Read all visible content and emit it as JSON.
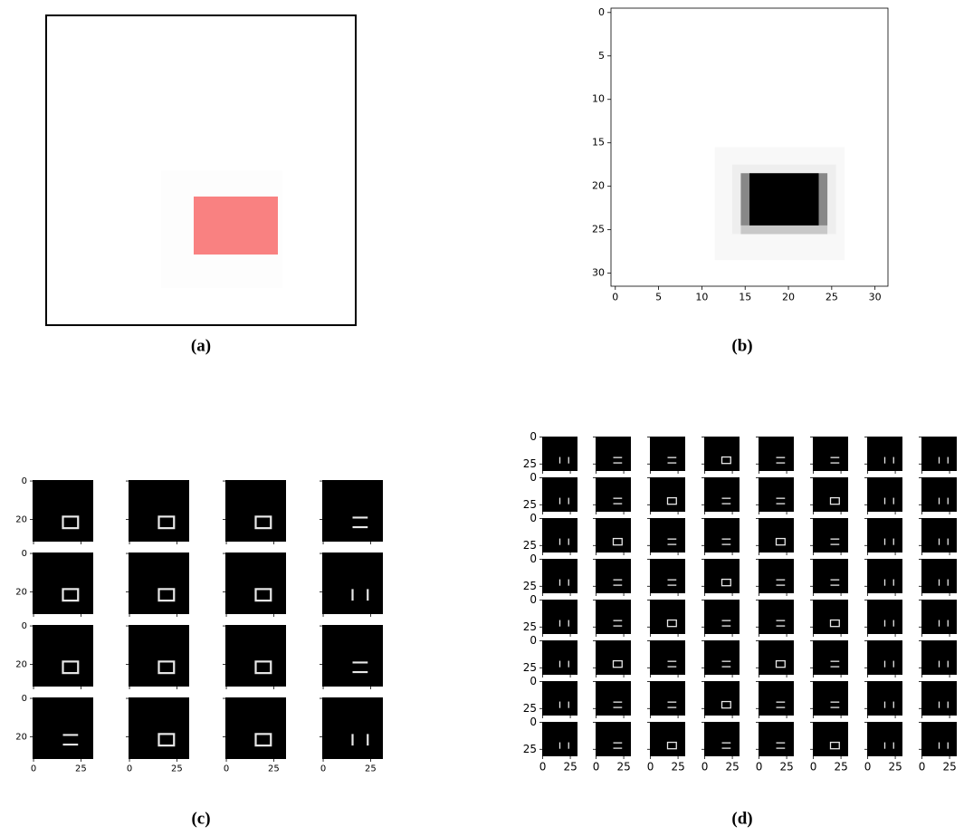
{
  "panels": [
    {
      "caption": "(a)"
    },
    {
      "caption": "(b)",
      "xlim": [
        -0.5,
        31.5
      ],
      "ylim": [
        31.5,
        -0.5
      ],
      "xticks": [
        0,
        5,
        10,
        15,
        20,
        25,
        30
      ],
      "yticks": [
        0,
        5,
        10,
        15,
        20,
        25,
        30
      ]
    },
    {
      "caption": "(c)",
      "xlim": [
        -0.5,
        31.5
      ],
      "ylim": [
        31.5,
        -0.5
      ],
      "xticks": [
        0,
        25
      ],
      "yticks": [
        0,
        20
      ]
    },
    {
      "caption": "(d)",
      "xlim": [
        -0.5,
        31.5
      ],
      "ylim": [
        31.5,
        -0.5
      ],
      "xticks": [
        0,
        25
      ],
      "yticks": [
        0,
        25
      ]
    }
  ]
}
